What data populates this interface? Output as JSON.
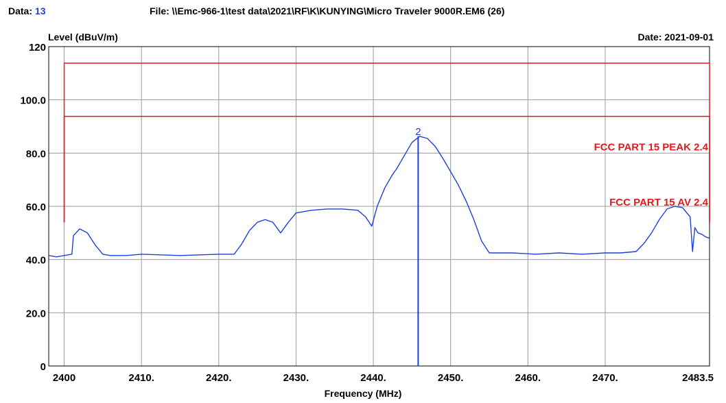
{
  "header": {
    "data_label": "Data:",
    "data_value": "13",
    "file": "File: \\\\Emc-966-1\\test data\\2021\\RF\\K\\KUNYING\\Micro Traveler 9000R.EM6  (26)",
    "date": "Date: 2021-09-01"
  },
  "colors": {
    "trace": "#1f3fd6",
    "limit": "#e01b1b",
    "grid": "#9a9a9a",
    "axis": "#000000"
  },
  "chart_data": {
    "type": "line",
    "xlabel": "Frequency (MHz)",
    "ylabel": "Level (dBuV/m)",
    "xlim": [
      2398,
      2483.5
    ],
    "ylim": [
      0,
      120
    ],
    "grid": true,
    "x_ticks": [
      {
        "v": 2400,
        "label": "2400"
      },
      {
        "v": 2410,
        "label": "2410."
      },
      {
        "v": 2420,
        "label": "2420."
      },
      {
        "v": 2430,
        "label": "2430."
      },
      {
        "v": 2440,
        "label": "2440."
      },
      {
        "v": 2450,
        "label": "2450."
      },
      {
        "v": 2460,
        "label": "2460."
      },
      {
        "v": 2470,
        "label": "2470."
      },
      {
        "v": 2483.5,
        "label": "2483.5"
      }
    ],
    "y_ticks": [
      {
        "v": 0,
        "label": "0"
      },
      {
        "v": 20,
        "label": "20.0"
      },
      {
        "v": 40,
        "label": "40.0"
      },
      {
        "v": 60,
        "label": "60.0"
      },
      {
        "v": 80,
        "label": "80.0"
      },
      {
        "v": 100,
        "label": "100.0"
      },
      {
        "v": 120,
        "label": "120"
      }
    ],
    "limits": [
      {
        "name": "FCC PART 15 PEAK 2.4",
        "level": 113.8,
        "band": [
          2400,
          2483.5
        ],
        "edge_level": 54
      },
      {
        "name": "FCC PART 15 AV 2.4",
        "level": 93.8,
        "band": [
          2400,
          2483.5
        ],
        "edge_level": 54
      }
    ],
    "marker": {
      "label": "2",
      "x": 2445.8,
      "y": 86.3
    },
    "series": [
      {
        "x": [
          2398,
          2399,
          2400,
          2401,
          2401.2,
          2402,
          2403,
          2404,
          2405,
          2406,
          2408,
          2410,
          2412,
          2415,
          2418,
          2420,
          2422,
          2423,
          2424,
          2425,
          2426,
          2427,
          2428,
          2429,
          2430,
          2432,
          2434,
          2436,
          2438,
          2439,
          2439.8,
          2440.5,
          2441.5,
          2442.5,
          2443,
          2444,
          2445,
          2446,
          2447,
          2448,
          2449,
          2450,
          2451,
          2452,
          2453,
          2454,
          2455,
          2458,
          2461,
          2464,
          2467,
          2470,
          2472,
          2474,
          2475,
          2476,
          2477,
          2478,
          2479,
          2480,
          2481,
          2481.3,
          2481.6,
          2482,
          2482.5,
          2483,
          2483.5
        ],
        "y": [
          41.5,
          41,
          41.5,
          42,
          49,
          51.5,
          50,
          45.5,
          42,
          41.5,
          41.5,
          42,
          41.8,
          41.5,
          41.8,
          42,
          42,
          46,
          51,
          54,
          55,
          54,
          50,
          54,
          57.5,
          58.5,
          59,
          59,
          58.5,
          56,
          52.5,
          60,
          67,
          72,
          74,
          79,
          84,
          86.3,
          85.5,
          82.5,
          78,
          73,
          68,
          62,
          55,
          47,
          42.5,
          42.5,
          42,
          42.5,
          42,
          42.5,
          42.5,
          43,
          46,
          50,
          55,
          59,
          60,
          59.5,
          56,
          43,
          52,
          50,
          49.5,
          48.5,
          48
        ]
      }
    ]
  }
}
